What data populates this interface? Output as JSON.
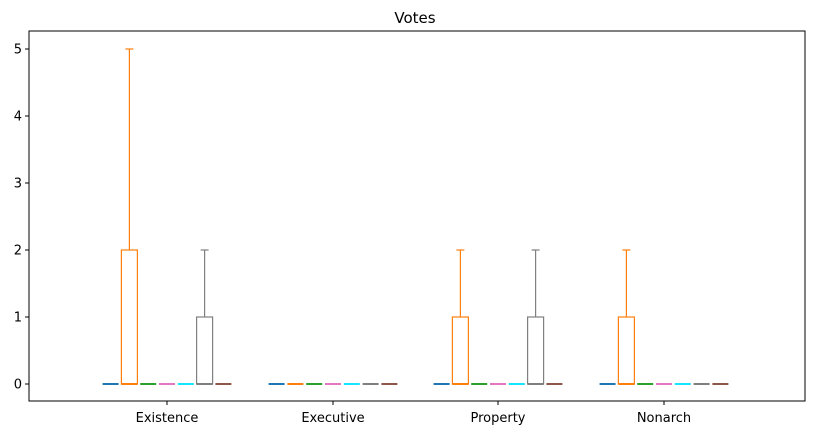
{
  "chart_data": {
    "type": "box",
    "title": "Votes",
    "xlabel": "",
    "ylabel": "",
    "categories": [
      "Existence",
      "Executive",
      "Property",
      "Nonarch"
    ],
    "ylim": [
      -0.25,
      5.25
    ],
    "yticks": [
      0,
      1,
      2,
      3,
      4,
      5
    ],
    "grid": false,
    "legend": "none",
    "series": [
      {
        "color": "#1f77b4",
        "boxes": [
          {
            "min": 0,
            "q1": 0,
            "median": 0,
            "q3": 0,
            "max": 0
          },
          {
            "min": 0,
            "q1": 0,
            "median": 0,
            "q3": 0,
            "max": 0
          },
          {
            "min": 0,
            "q1": 0,
            "median": 0,
            "q3": 0,
            "max": 0
          },
          {
            "min": 0,
            "q1": 0,
            "median": 0,
            "q3": 0,
            "max": 0
          }
        ]
      },
      {
        "color": "#ff7f0e",
        "boxes": [
          {
            "min": 0,
            "q1": 0,
            "median": 0,
            "q3": 2,
            "max": 5
          },
          {
            "min": 0,
            "q1": 0,
            "median": 0,
            "q3": 0,
            "max": 0
          },
          {
            "min": 0,
            "q1": 0,
            "median": 0,
            "q3": 1,
            "max": 2
          },
          {
            "min": 0,
            "q1": 0,
            "median": 0,
            "q3": 1,
            "max": 2
          }
        ]
      },
      {
        "color": "#2ca02c",
        "boxes": [
          {
            "min": 0,
            "q1": 0,
            "median": 0,
            "q3": 0,
            "max": 0
          },
          {
            "min": 0,
            "q1": 0,
            "median": 0,
            "q3": 0,
            "max": 0
          },
          {
            "min": 0,
            "q1": 0,
            "median": 0,
            "q3": 0,
            "max": 0
          },
          {
            "min": 0,
            "q1": 0,
            "median": 0,
            "q3": 0,
            "max": 0
          }
        ]
      },
      {
        "color": "#e377c2",
        "boxes": [
          {
            "min": 0,
            "q1": 0,
            "median": 0,
            "q3": 0,
            "max": 0
          },
          {
            "min": 0,
            "q1": 0,
            "median": 0,
            "q3": 0,
            "max": 0
          },
          {
            "min": 0,
            "q1": 0,
            "median": 0,
            "q3": 0,
            "max": 0
          },
          {
            "min": 0,
            "q1": 0,
            "median": 0,
            "q3": 0,
            "max": 0
          }
        ]
      },
      {
        "color": "#17e5ff",
        "boxes": [
          {
            "min": 0,
            "q1": 0,
            "median": 0,
            "q3": 0,
            "max": 0
          },
          {
            "min": 0,
            "q1": 0,
            "median": 0,
            "q3": 0,
            "max": 0
          },
          {
            "min": 0,
            "q1": 0,
            "median": 0,
            "q3": 0,
            "max": 0
          },
          {
            "min": 0,
            "q1": 0,
            "median": 0,
            "q3": 0,
            "max": 0
          }
        ]
      },
      {
        "color": "#7f7f7f",
        "boxes": [
          {
            "min": 0,
            "q1": 0,
            "median": 0,
            "q3": 1,
            "max": 2
          },
          {
            "min": 0,
            "q1": 0,
            "median": 0,
            "q3": 0,
            "max": 0
          },
          {
            "min": 0,
            "q1": 0,
            "median": 0,
            "q3": 1,
            "max": 2
          },
          {
            "min": 0,
            "q1": 0,
            "median": 0,
            "q3": 0,
            "max": 0
          }
        ]
      },
      {
        "color": "#8c564b",
        "boxes": [
          {
            "min": 0,
            "q1": 0,
            "median": 0,
            "q3": 0,
            "max": 0
          },
          {
            "min": 0,
            "q1": 0,
            "median": 0,
            "q3": 0,
            "max": 0
          },
          {
            "min": 0,
            "q1": 0,
            "median": 0,
            "q3": 0,
            "max": 0
          },
          {
            "min": 0,
            "q1": 0,
            "median": 0,
            "q3": 0,
            "max": 0
          }
        ]
      }
    ]
  }
}
